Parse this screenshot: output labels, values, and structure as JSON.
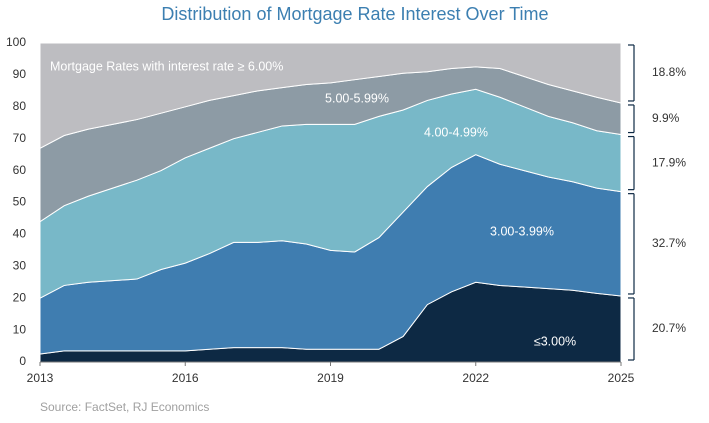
{
  "chart_data": {
    "type": "stacked_area",
    "title": "Distribution of Mortgage Rate Interest Over Time",
    "source": "Source: FactSet, RJ Economics",
    "x": [
      2013,
      2013.5,
      2014,
      2014.5,
      2015,
      2015.5,
      2016,
      2016.5,
      2017,
      2017.5,
      2018,
      2018.5,
      2019,
      2019.5,
      2020,
      2020.5,
      2021,
      2021.5,
      2022,
      2022.5,
      2023,
      2023.5,
      2024,
      2024.5,
      2025
    ],
    "xlim": [
      2013,
      2025
    ],
    "xticks": [
      2013,
      2016,
      2019,
      2022,
      2025
    ],
    "ylim": [
      0,
      100
    ],
    "yticks": [
      0,
      10,
      20,
      30,
      40,
      50,
      60,
      70,
      80,
      90,
      100
    ],
    "series": [
      {
        "name": "≤3.00%",
        "color": "#0d2944",
        "end_label": "20.7%",
        "values": [
          2.5,
          3.5,
          3.5,
          3.5,
          3.5,
          3.5,
          3.5,
          4,
          4.5,
          4.5,
          4.5,
          4,
          4,
          4,
          4,
          8,
          18,
          22,
          25,
          24,
          23.5,
          23,
          22.5,
          21.5,
          20.7
        ]
      },
      {
        "name": "3.00-3.99%",
        "color": "#3f7db0",
        "end_label": "32.7%",
        "values": [
          17.5,
          20.5,
          21.5,
          22,
          22.5,
          25.5,
          27.5,
          30,
          33,
          33,
          33.5,
          33,
          31,
          30.5,
          35,
          39,
          37,
          39,
          40,
          38,
          36.5,
          35,
          34,
          33,
          32.7
        ]
      },
      {
        "name": "4.00-4.99%",
        "color": "#78b8c8",
        "end_label": "17.9%",
        "values": [
          24,
          25,
          27,
          29,
          31,
          31,
          33,
          33,
          32.5,
          34.5,
          36,
          37.5,
          39.5,
          40,
          38,
          32,
          27,
          23,
          20.5,
          21,
          20,
          19,
          18.5,
          18,
          17.9
        ]
      },
      {
        "name": "5.00-5.99%",
        "color": "#8d9ba5",
        "end_label": "9.9%",
        "values": [
          23,
          22,
          21,
          20,
          19,
          18,
          16,
          15,
          13.5,
          13,
          12,
          12.5,
          13,
          14,
          12.5,
          11.5,
          9,
          8,
          7,
          9,
          9.5,
          10,
          10,
          10.5,
          9.9
        ]
      },
      {
        "name": "Mortgage Rates with interest rate ≥ 6.00%",
        "color": "#bdbdc1",
        "end_label": "18.8%",
        "values": [
          33,
          29,
          27,
          25.5,
          24,
          22,
          20,
          18,
          16.5,
          15,
          14,
          13,
          12.5,
          11.5,
          10.5,
          9.5,
          9,
          8,
          7.5,
          8,
          10.5,
          13,
          15,
          17,
          18.8
        ]
      }
    ]
  }
}
